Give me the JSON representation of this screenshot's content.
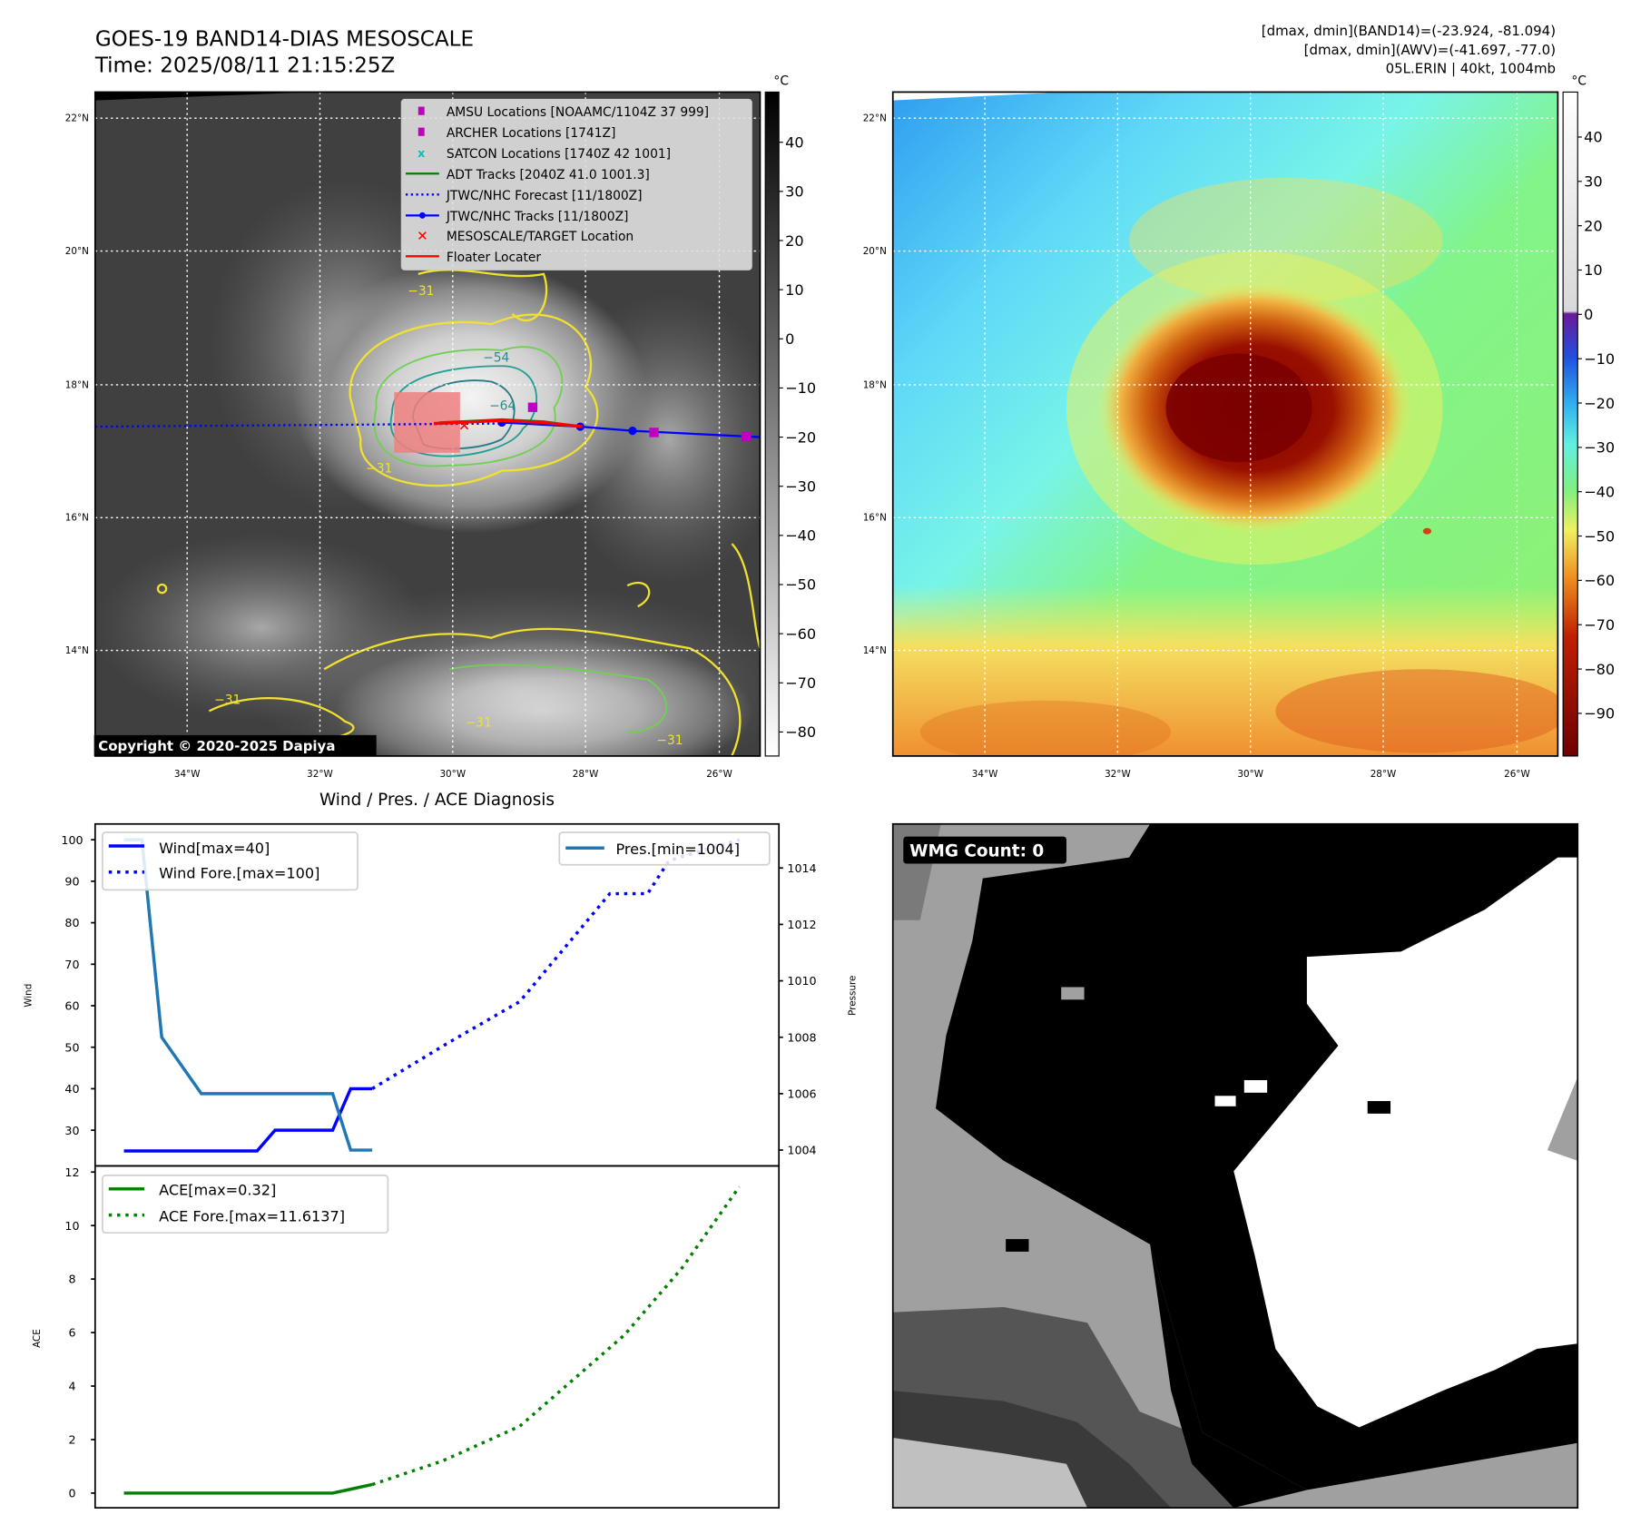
{
  "header": {
    "title": "GOES-19 BAND14-DIAS MESOSCALE",
    "time": "Time: 2025/08/11 21:15:25Z",
    "stats_band14": "[dmax, dmin](BAND14)=(-23.924, -81.094)",
    "stats_awv": "[dmax, dmin](AWV)=(-41.697, -77.0)",
    "storm": "05L.ERIN | 40kt, 1004mb"
  },
  "maps": {
    "lat_labels": [
      "22°N",
      "20°N",
      "18°N",
      "16°N",
      "14°N"
    ],
    "lon_labels": [
      "34°W",
      "32°W",
      "30°W",
      "28°W",
      "26°W"
    ],
    "unit": "°C",
    "left_colorbar_ticks": [
      "40",
      "30",
      "20",
      "10",
      "0",
      "−10",
      "−20",
      "−30",
      "−40",
      "−50",
      "−60",
      "−70",
      "−80"
    ],
    "right_colorbar_ticks": [
      "40",
      "30",
      "20",
      "10",
      "0",
      "−10",
      "−20",
      "−30",
      "−40",
      "−50",
      "−60",
      "−70",
      "−80",
      "−90"
    ],
    "copyright": "Copyright © 2020-2025 Dapiya",
    "contour_labels": [
      "−31",
      "−54",
      "−64",
      "−31",
      "−31",
      "−31",
      "−31"
    ],
    "legend": [
      {
        "label": "AMSU Locations [NOAAMC/1104Z 37 999]",
        "color": "#c000c0",
        "marker": "square"
      },
      {
        "label": "ARCHER Locations [1741Z]",
        "color": "#c000c0",
        "marker": "square"
      },
      {
        "label": "SATCON Locations [1740Z 42 1001]",
        "color": "#00c0c0",
        "marker": "x"
      },
      {
        "label": "ADT Tracks [2040Z 41.0 1001.3]",
        "color": "#008000",
        "marker": "line"
      },
      {
        "label": "JTWC/NHC Forecast [11/1800Z]",
        "color": "#0000ff",
        "marker": "dotted"
      },
      {
        "label": "JTWC/NHC Tracks [11/1800Z]",
        "color": "#0000ff",
        "marker": "line-dot"
      },
      {
        "label": "MESOSCALE/TARGET Location",
        "color": "#ff0000",
        "marker": "x"
      },
      {
        "label": "Floater Locater",
        "color": "#ff0000",
        "marker": "line"
      }
    ],
    "wmg_label": "WMG Count: 0"
  },
  "chart_data": [
    {
      "type": "line",
      "title": "Wind / Pres. / ACE Diagnosis",
      "ylabel": "Wind",
      "y2label": "Pressure",
      "xlim": [
        -1.6,
        36.4
      ],
      "ylim": [
        21.4,
        103.8
      ],
      "y2lim": [
        1003.44,
        1015.56
      ],
      "yticks": [
        30,
        40,
        50,
        60,
        70,
        80,
        90,
        100
      ],
      "y2ticks": [
        1004,
        1006,
        1008,
        1010,
        1012,
        1014
      ],
      "legend_left": [
        "Wind[max=40]",
        "Wind Fore.[max=100]"
      ],
      "legend_right": [
        "Pres.[min=1004]"
      ],
      "series": [
        {
          "name": "Wind",
          "color": "#0000ff",
          "style": "solid",
          "axis": "left",
          "x": [
            0,
            7.4,
            8.4,
            11.6,
            12.6,
            13.8
          ],
          "y": [
            25,
            25,
            30,
            30,
            40,
            40
          ]
        },
        {
          "name": "Wind Fore.",
          "color": "#0000ff",
          "style": "dotted",
          "axis": "left",
          "x": [
            13.8,
            18.0,
            22.0,
            27.0,
            29.1,
            30.3,
            34.2
          ],
          "y": [
            40,
            51,
            61,
            87,
            87,
            95,
            100
          ]
        },
        {
          "name": "Pres.",
          "color": "#1f77b4",
          "style": "solid",
          "axis": "right",
          "x": [
            0,
            1,
            2.1,
            4.3,
            11.6,
            12.6,
            13.8
          ],
          "y": [
            1015,
            1015,
            1008,
            1006,
            1006,
            1004,
            1004
          ]
        }
      ]
    },
    {
      "type": "line",
      "ylabel": "ACE",
      "xlim": [
        -1.6,
        36.4
      ],
      "ylim": [
        -0.55,
        12.23
      ],
      "yticks": [
        0,
        2,
        4,
        6,
        8,
        10,
        12
      ],
      "legend": [
        "ACE[max=0.32]",
        "ACE Fore.[max=11.6137]"
      ],
      "series": [
        {
          "name": "ACE",
          "color": "#008000",
          "style": "solid",
          "x": [
            0,
            11.6,
            13.8
          ],
          "y": [
            0,
            0,
            0.32
          ]
        },
        {
          "name": "ACE Fore.",
          "color": "#008000",
          "style": "dotted",
          "x": [
            13.8,
            17.7,
            22.0,
            27.8,
            31.0,
            34.2
          ],
          "y": [
            0.32,
            1.2,
            2.5,
            5.9,
            8.4,
            11.45
          ]
        }
      ]
    }
  ]
}
